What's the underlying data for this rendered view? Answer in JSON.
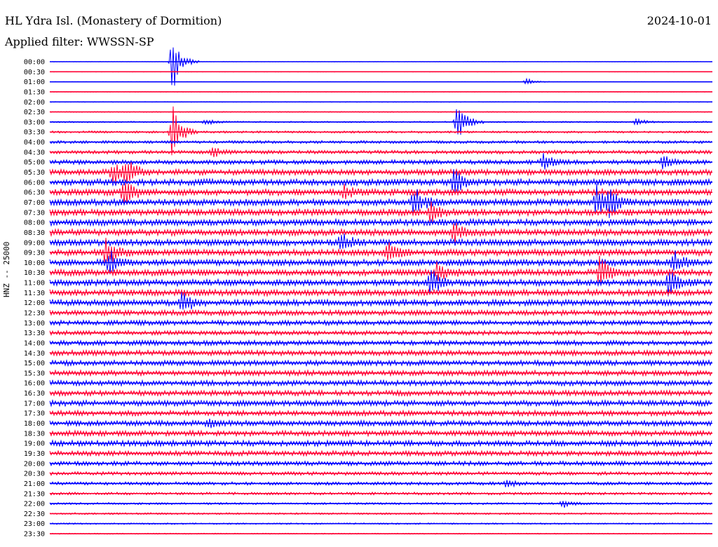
{
  "header": {
    "title": "HL Ydra Isl. (Monastery of Dormition)",
    "date": "2024-10-01",
    "filter_label": "Applied filter: WWSSN-SP"
  },
  "chart_data": {
    "type": "line",
    "title": "HL Ydra Isl. (Monastery of Dormition)",
    "ylabel": "HNZ -- 25000",
    "row_labels": [
      "00:00",
      "00:30",
      "01:00",
      "01:30",
      "02:00",
      "02:30",
      "03:00",
      "03:30",
      "04:00",
      "04:30",
      "05:00",
      "05:30",
      "06:00",
      "06:30",
      "07:00",
      "07:30",
      "08:00",
      "08:30",
      "09:00",
      "09:30",
      "10:00",
      "10:30",
      "11:00",
      "11:30",
      "12:00",
      "12:30",
      "13:00",
      "13:30",
      "14:00",
      "14:30",
      "15:00",
      "15:30",
      "16:00",
      "16:30",
      "17:00",
      "17:30",
      "18:00",
      "18:30",
      "19:00",
      "19:30",
      "20:00",
      "20:30",
      "21:00",
      "21:30",
      "22:00",
      "22:30",
      "23:00",
      "23:30"
    ],
    "noise_levels": [
      0.2,
      0.3,
      0.3,
      0.3,
      0.4,
      0.5,
      0.8,
      1.2,
      1.6,
      2.0,
      2.5,
      3.2,
      3.6,
      3.6,
      3.6,
      3.6,
      3.6,
      3.6,
      3.6,
      3.6,
      3.6,
      3.6,
      3.6,
      3.6,
      3.4,
      3.0,
      2.8,
      2.5,
      2.8,
      3.0,
      3.0,
      3.0,
      3.0,
      3.0,
      3.2,
      3.0,
      3.0,
      3.0,
      3.2,
      2.8,
      2.5,
      2.0,
      1.8,
      1.5,
      1.2,
      1.0,
      0.8,
      0.6
    ],
    "events": [
      {
        "row": 0,
        "pos": 0.185,
        "amp": 45
      },
      {
        "row": 2,
        "pos": 0.72,
        "amp": 5
      },
      {
        "row": 6,
        "pos": 0.615,
        "amp": 35
      },
      {
        "row": 6,
        "pos": 0.235,
        "amp": 5
      },
      {
        "row": 6,
        "pos": 0.885,
        "amp": 6
      },
      {
        "row": 7,
        "pos": 0.185,
        "amp": 40
      },
      {
        "row": 9,
        "pos": 0.245,
        "amp": 8
      },
      {
        "row": 10,
        "pos": 0.745,
        "amp": 12
      },
      {
        "row": 10,
        "pos": 0.925,
        "amp": 10
      },
      {
        "row": 11,
        "pos": 0.095,
        "amp": 18
      },
      {
        "row": 11,
        "pos": 0.115,
        "amp": 22
      },
      {
        "row": 12,
        "pos": 0.61,
        "amp": 20
      },
      {
        "row": 13,
        "pos": 0.11,
        "amp": 25
      },
      {
        "row": 13,
        "pos": 0.445,
        "amp": 10
      },
      {
        "row": 14,
        "pos": 0.55,
        "amp": 25
      },
      {
        "row": 14,
        "pos": 0.825,
        "amp": 25
      },
      {
        "row": 14,
        "pos": 0.845,
        "amp": 22
      },
      {
        "row": 15,
        "pos": 0.575,
        "amp": 15
      },
      {
        "row": 17,
        "pos": 0.61,
        "amp": 15
      },
      {
        "row": 18,
        "pos": 0.44,
        "amp": 15
      },
      {
        "row": 19,
        "pos": 0.51,
        "amp": 20
      },
      {
        "row": 19,
        "pos": 0.085,
        "amp": 25
      },
      {
        "row": 20,
        "pos": 0.09,
        "amp": 20
      },
      {
        "row": 20,
        "pos": 0.94,
        "amp": 22
      },
      {
        "row": 21,
        "pos": 0.585,
        "amp": 15
      },
      {
        "row": 21,
        "pos": 0.83,
        "amp": 25
      },
      {
        "row": 22,
        "pos": 0.575,
        "amp": 22
      },
      {
        "row": 22,
        "pos": 0.935,
        "amp": 25
      },
      {
        "row": 24,
        "pos": 0.2,
        "amp": 18
      },
      {
        "row": 36,
        "pos": 0.24,
        "amp": 6
      },
      {
        "row": 42,
        "pos": 0.69,
        "amp": 5
      },
      {
        "row": 44,
        "pos": 0.775,
        "amp": 6
      }
    ],
    "series": [
      {
        "name": "",
        "color": "#0000ff"
      },
      {
        "name": "",
        "color": "#ff0033"
      }
    ],
    "grid": false
  }
}
